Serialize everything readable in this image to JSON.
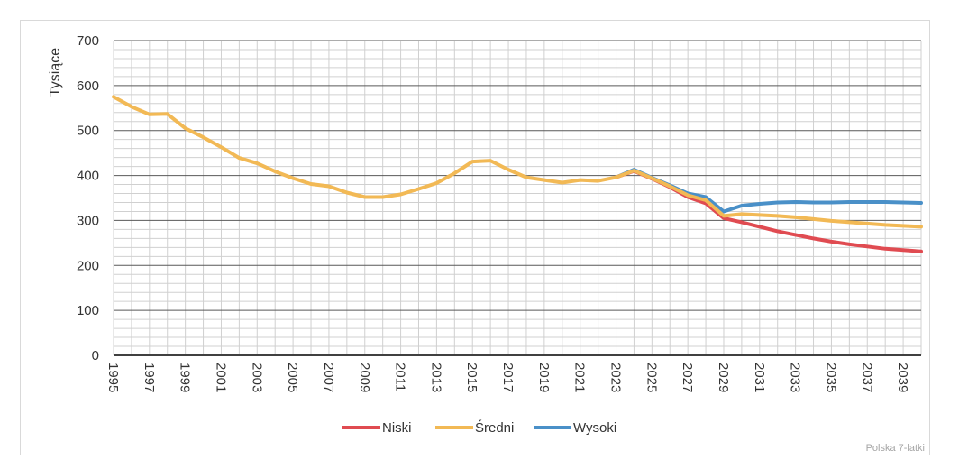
{
  "chart_data": {
    "type": "line",
    "title": "",
    "ylabel": "Tysiące",
    "xlabel": "",
    "ylim": [
      0,
      700
    ],
    "yticks": [
      0,
      100,
      200,
      300,
      400,
      500,
      600,
      700
    ],
    "xlim": [
      1995,
      2040
    ],
    "xticks": [
      "1995",
      "1997",
      "1999",
      "2001",
      "2003",
      "2005",
      "2007",
      "2009",
      "2011",
      "2013",
      "2015",
      "2017",
      "2019",
      "2021",
      "2023",
      "2025",
      "2027",
      "2029",
      "2031",
      "2033",
      "2035",
      "2037",
      "2039"
    ],
    "grid": true,
    "legend_position": "bottom",
    "series": [
      {
        "name": "Wysoki",
        "color": "#4a90c8",
        "x": [
          2023,
          2024,
          2025,
          2026,
          2027,
          2028,
          2029,
          2030,
          2031,
          2032,
          2033,
          2034,
          2035,
          2036,
          2037,
          2038,
          2039,
          2040
        ],
        "values": [
          396,
          413,
          395,
          378,
          360,
          352,
          320,
          333,
          337,
          340,
          341,
          340,
          340,
          341,
          341,
          341,
          340,
          339
        ]
      },
      {
        "name": "Niski",
        "color": "#e04b51",
        "x": [
          2023,
          2024,
          2025,
          2026,
          2027,
          2028,
          2029,
          2030,
          2031,
          2032,
          2033,
          2034,
          2035,
          2036,
          2037,
          2038,
          2039,
          2040
        ],
        "values": [
          396,
          410,
          393,
          374,
          352,
          338,
          305,
          296,
          286,
          276,
          268,
          260,
          253,
          247,
          242,
          237,
          234,
          231
        ]
      },
      {
        "name": "Średni",
        "color": "#f2b955",
        "x": [
          1995,
          1996,
          1997,
          1998,
          1999,
          2000,
          2001,
          2002,
          2003,
          2004,
          2005,
          2006,
          2007,
          2008,
          2009,
          2010,
          2011,
          2012,
          2013,
          2014,
          2015,
          2016,
          2017,
          2018,
          2019,
          2020,
          2021,
          2022,
          2023,
          2024,
          2025,
          2026,
          2027,
          2028,
          2029,
          2030,
          2031,
          2032,
          2033,
          2034,
          2035,
          2036,
          2037,
          2038,
          2039,
          2040
        ],
        "values": [
          575,
          553,
          536,
          537,
          505,
          485,
          463,
          439,
          427,
          409,
          394,
          381,
          376,
          362,
          352,
          352,
          358,
          370,
          383,
          405,
          431,
          433,
          413,
          396,
          390,
          384,
          390,
          388,
          396,
          411,
          394,
          376,
          356,
          345,
          310,
          314,
          312,
          310,
          307,
          303,
          299,
          296,
          293,
          290,
          288,
          286
        ]
      }
    ],
    "legend": [
      "Niski",
      "Średni",
      "Wysoki"
    ],
    "footer": "Polska 7-latki"
  }
}
